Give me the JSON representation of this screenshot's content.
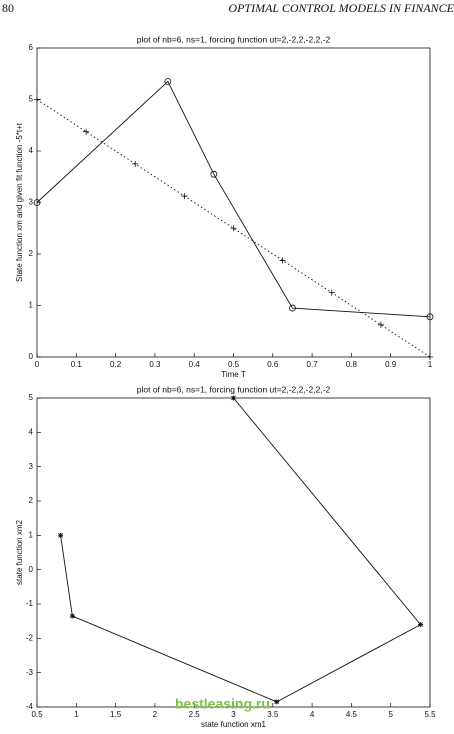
{
  "header": {
    "page": "80",
    "title": "OPTIMAL CONTROL MODELS IN FINANCE"
  },
  "watermark": "bestleasing.ru",
  "chart_data": [
    {
      "type": "line",
      "title": "plot of nb=6, ns=1, forcing function ut=2,-2,2,-2,2,-2",
      "xlabel": "Time T",
      "ylabel": "State function xm and given fit function -5*t+t",
      "xlim": [
        0,
        1
      ],
      "xticks": [
        0,
        0.1,
        0.2,
        0.3,
        0.4,
        0.5,
        0.6,
        0.7,
        0.8,
        0.9,
        1
      ],
      "ylim": [
        0,
        6
      ],
      "yticks": [
        0,
        1,
        2,
        3,
        4,
        5,
        6
      ],
      "series": [
        {
          "color": "#111111",
          "marker": "circle",
          "linestyle": "solid",
          "x": [
            0,
            0.333,
            0.45,
            0.65,
            1
          ],
          "values": [
            3.0,
            5.35,
            3.55,
            0.95,
            0.78
          ]
        },
        {
          "color": "#111111",
          "marker": "plus",
          "linestyle": "dotted",
          "x": [
            0,
            0.125,
            0.25,
            0.375,
            0.5,
            0.625,
            0.75,
            0.875,
            1
          ],
          "values": [
            5,
            4.375,
            3.75,
            3.125,
            2.5,
            1.875,
            1.25,
            0.625,
            0
          ]
        }
      ]
    },
    {
      "type": "line",
      "title": "plot of nb=6, ns=1, forcing function ut=2,-2,2,-2,2,-2",
      "xlabel": "state function xm1",
      "ylabel": "state function xm2",
      "xlim": [
        0.5,
        5.5
      ],
      "xticks": [
        0.5,
        1,
        1.5,
        2,
        2.5,
        3,
        3.5,
        4,
        4.5,
        5,
        5.5
      ],
      "ylim": [
        -4,
        5
      ],
      "yticks": [
        -4,
        -3,
        -2,
        -1,
        0,
        1,
        2,
        3,
        4,
        5
      ],
      "series": [
        {
          "color": "#111111",
          "marker": "star",
          "linestyle": "solid",
          "x": [
            0.8,
            0.95,
            3.55,
            5.38,
            3.0
          ],
          "values": [
            1.0,
            -1.35,
            -3.85,
            -1.6,
            5.0
          ]
        }
      ]
    }
  ]
}
